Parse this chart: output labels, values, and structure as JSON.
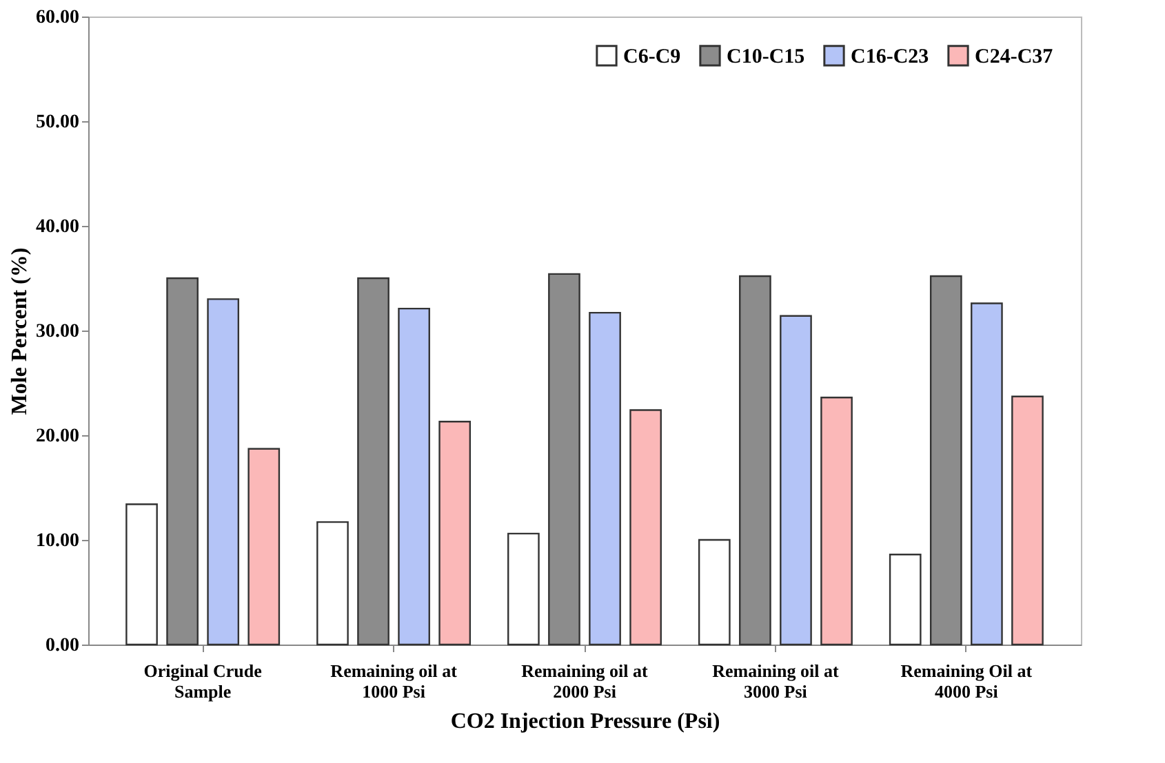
{
  "chart_data": {
    "type": "bar",
    "xlabel": "CO2 Injection Pressure (Psi)",
    "ylabel": "Mole Percent (%)",
    "categories": [
      "Original Crude\nSample",
      "Remaining oil at\n1000 Psi",
      "Remaining oil at\n2000 Psi",
      "Remaining oil at\n3000 Psi",
      "Remaining Oil at\n4000 Psi"
    ],
    "series": [
      {
        "name": "C6-C9",
        "color": "#ffffff",
        "values": [
          13.4,
          11.7,
          10.6,
          10.0,
          8.6
        ]
      },
      {
        "name": "C10-C15",
        "color": "#8c8c8c",
        "values": [
          35.0,
          35.0,
          35.4,
          35.2,
          35.2
        ]
      },
      {
        "name": "C16-C23",
        "color": "#b4c4f7",
        "values": [
          33.0,
          32.1,
          31.7,
          31.4,
          32.6
        ]
      },
      {
        "name": "C24-C37",
        "color": "#fbb8b8",
        "values": [
          18.7,
          21.3,
          22.4,
          23.6,
          23.7
        ]
      }
    ],
    "ylim": [
      0,
      60
    ],
    "yticks": [
      {
        "value": 0,
        "label": "0.00"
      },
      {
        "value": 10,
        "label": "10.00"
      },
      {
        "value": 20,
        "label": "20.00"
      },
      {
        "value": 30,
        "label": "30.00"
      },
      {
        "value": 40,
        "label": "40.00"
      },
      {
        "value": 50,
        "label": "50.00"
      },
      {
        "value": 60,
        "label": "60.00"
      }
    ],
    "grid": false,
    "legend": "top right"
  }
}
